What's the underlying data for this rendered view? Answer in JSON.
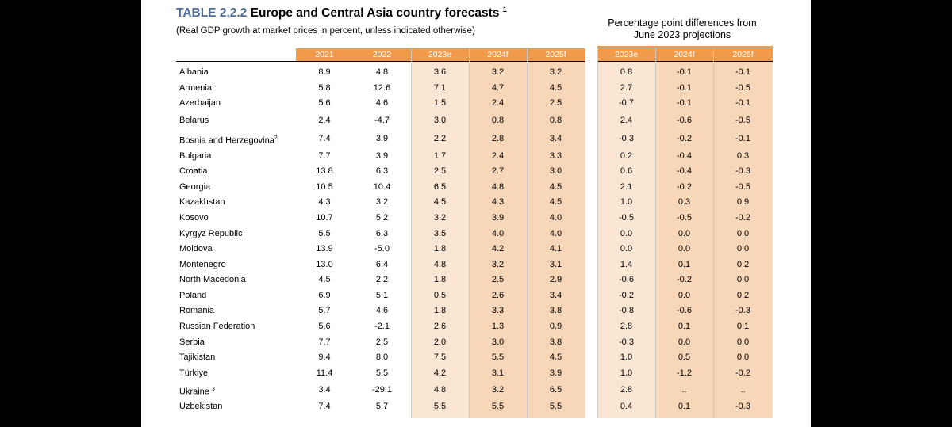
{
  "title": {
    "code": "TABLE 2.2.2",
    "text": "Europe and Central Asia country forecasts",
    "footnote": "1"
  },
  "subtitle": "(Real GDP growth at market prices in percent, unless indicated otherwise)",
  "diff_header": {
    "line1": "Percentage point differences from",
    "line2": "June 2023 projections"
  },
  "columns": {
    "main": [
      "2021",
      "2022",
      "2023e",
      "2024f",
      "2025f"
    ],
    "diff": [
      "2023e",
      "2024f",
      "2025f"
    ]
  },
  "colors": {
    "header_orange": "#f19a4a",
    "shade_light": "#fbe5d3",
    "shade_mid": "#f8d6b8",
    "title_blue": "#4d6e9c"
  },
  "rows": [
    {
      "country": "Albania",
      "sup": "",
      "values": [
        "8.9",
        "4.8",
        "3.6",
        "3.2",
        "3.2"
      ],
      "diffs": [
        "0.8",
        "-0.1",
        "-0.1"
      ]
    },
    {
      "country": "Armenia",
      "sup": "",
      "values": [
        "5.8",
        "12.6",
        "7.1",
        "4.7",
        "4.5"
      ],
      "diffs": [
        "2.7",
        "-0.1",
        "-0.5"
      ]
    },
    {
      "country": "Azerbaijan",
      "sup": "",
      "values": [
        "5.6",
        "4.6",
        "1.5",
        "2.4",
        "2.5"
      ],
      "diffs": [
        "-0.7",
        "-0.1",
        "-0.1"
      ]
    },
    {
      "country": "Belarus",
      "sup": "",
      "values": [
        "2.4",
        "-4.7",
        "3.0",
        "0.8",
        "0.8"
      ],
      "diffs": [
        "2.4",
        "-0.6",
        "-0.5"
      ]
    },
    {
      "country": "Bosnia and Herzegovina",
      "sup": "2",
      "values": [
        "7.4",
        "3.9",
        "2.2",
        "2.8",
        "3.4"
      ],
      "diffs": [
        "-0.3",
        "-0.2",
        "-0.1"
      ]
    },
    {
      "country": "Bulgaria",
      "sup": "",
      "values": [
        "7.7",
        "3.9",
        "1.7",
        "2.4",
        "3.3"
      ],
      "diffs": [
        "0.2",
        "-0.4",
        "0.3"
      ]
    },
    {
      "country": "Croatia",
      "sup": "",
      "values": [
        "13.8",
        "6.3",
        "2.5",
        "2.7",
        "3.0"
      ],
      "diffs": [
        "0.6",
        "-0.4",
        "-0.3"
      ]
    },
    {
      "country": "Georgia",
      "sup": "",
      "values": [
        "10.5",
        "10.4",
        "6.5",
        "4.8",
        "4.5"
      ],
      "diffs": [
        "2.1",
        "-0.2",
        "-0.5"
      ]
    },
    {
      "country": "Kazakhstan",
      "sup": "",
      "values": [
        "4.3",
        "3.2",
        "4.5",
        "4.3",
        "4.5"
      ],
      "diffs": [
        "1.0",
        "0.3",
        "0.9"
      ]
    },
    {
      "country": "Kosovo",
      "sup": "",
      "values": [
        "10.7",
        "5.2",
        "3.2",
        "3.9",
        "4.0"
      ],
      "diffs": [
        "-0.5",
        "-0.5",
        "-0.2"
      ]
    },
    {
      "country": "Kyrgyz Republic",
      "sup": "",
      "values": [
        "5.5",
        "6.3",
        "3.5",
        "4.0",
        "4.0"
      ],
      "diffs": [
        "0.0",
        "0.0",
        "0.0"
      ]
    },
    {
      "country": "Moldova",
      "sup": "",
      "values": [
        "13.9",
        "-5.0",
        "1.8",
        "4.2",
        "4.1"
      ],
      "diffs": [
        "0.0",
        "0.0",
        "0.0"
      ]
    },
    {
      "country": "Montenegro",
      "sup": "",
      "values": [
        "13.0",
        "6.4",
        "4.8",
        "3.2",
        "3.1"
      ],
      "diffs": [
        "1.4",
        "0.1",
        "0.2"
      ]
    },
    {
      "country": "North Macedonia",
      "sup": "",
      "values": [
        "4.5",
        "2.2",
        "1.8",
        "2.5",
        "2.9"
      ],
      "diffs": [
        "-0.6",
        "-0.2",
        "0.0"
      ]
    },
    {
      "country": "Poland",
      "sup": "",
      "values": [
        "6.9",
        "5.1",
        "0.5",
        "2.6",
        "3.4"
      ],
      "diffs": [
        "-0.2",
        "0.0",
        "0.2"
      ]
    },
    {
      "country": "Romania",
      "sup": "",
      "values": [
        "5.7",
        "4.6",
        "1.8",
        "3.3",
        "3.8"
      ],
      "diffs": [
        "-0.8",
        "-0.6",
        "-0.3"
      ]
    },
    {
      "country": "Russian Federation",
      "sup": "",
      "values": [
        "5.6",
        "-2.1",
        "2.6",
        "1.3",
        "0.9"
      ],
      "diffs": [
        "2.8",
        "0.1",
        "0.1"
      ]
    },
    {
      "country": "Serbia",
      "sup": "",
      "values": [
        "7.7",
        "2.5",
        "2.0",
        "3.0",
        "3.8"
      ],
      "diffs": [
        "-0.3",
        "0.0",
        "0.0"
      ]
    },
    {
      "country": "Tajikistan",
      "sup": "",
      "values": [
        "9.4",
        "8.0",
        "7.5",
        "5.5",
        "4.5"
      ],
      "diffs": [
        "1.0",
        "0.5",
        "0.0"
      ]
    },
    {
      "country": "Türkiye",
      "sup": "",
      "values": [
        "11.4",
        "5.5",
        "4.2",
        "3.1",
        "3.9"
      ],
      "diffs": [
        "1.0",
        "-1.2",
        "-0.2"
      ]
    },
    {
      "country": "Ukraine ",
      "sup": "3",
      "values": [
        "3.4",
        "-29.1",
        "4.8",
        "3.2",
        "6.5"
      ],
      "diffs": [
        "2.8",
        "..",
        ".."
      ]
    },
    {
      "country": "Uzbekistan",
      "sup": "",
      "values": [
        "7.4",
        "5.7",
        "5.5",
        "5.5",
        "5.5"
      ],
      "diffs": [
        "0.4",
        "0.1",
        "-0.3"
      ]
    }
  ]
}
